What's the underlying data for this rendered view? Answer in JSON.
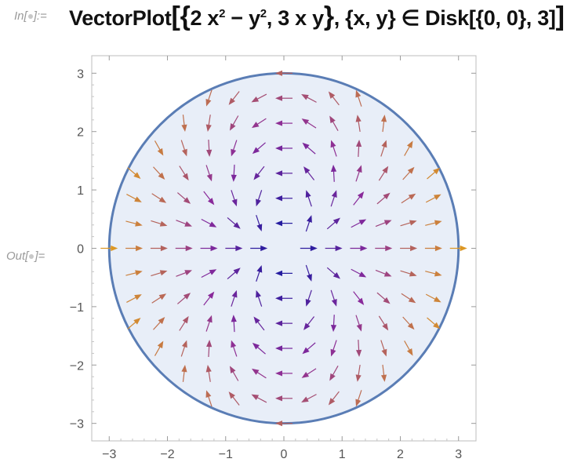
{
  "cell": {
    "input_prompt": "In[",
    "input_prompt_end": "]:=",
    "output_prompt": "Out[",
    "output_prompt_end": "]=",
    "code_part1": "VectorPlot",
    "code_open": "[",
    "code_brace_open": "{",
    "code_expr1": "2 x",
    "code_exp1": "2",
    "code_minus": " − y",
    "code_exp2": "2",
    "code_expr2": ",  3 x y",
    "code_brace_close": "}",
    "code_rest": ", {x, y} ∈ Disk[{0, 0}, 3]",
    "code_close": "]"
  },
  "chart_data": {
    "type": "vector",
    "field": {
      "u": "2 x^2 - y^2",
      "v": "3 x y"
    },
    "region": {
      "shape": "disk",
      "center": [
        0,
        0
      ],
      "radius": 3
    },
    "xlim": [
      -3.3,
      3.3
    ],
    "ylim": [
      -3.3,
      3.3
    ],
    "x_ticks": [
      "-3",
      "-2",
      "-1",
      "0",
      "1",
      "2",
      "3"
    ],
    "y_ticks": [
      "3",
      "2",
      "1",
      "0",
      "-1",
      "-2",
      "-3"
    ],
    "x_tick_values": [
      -3,
      -2,
      -1,
      0,
      1,
      2,
      3
    ],
    "y_tick_values": [
      3,
      2,
      1,
      0,
      -1,
      -2,
      -3
    ],
    "grid": false,
    "colors": {
      "disk_fill": "#e8eef8",
      "disk_stroke": "#5a7db5",
      "arrow_low": "#1a1aa0",
      "arrow_mid": "#8a2a9a",
      "arrow_high": "#f5b800"
    }
  }
}
